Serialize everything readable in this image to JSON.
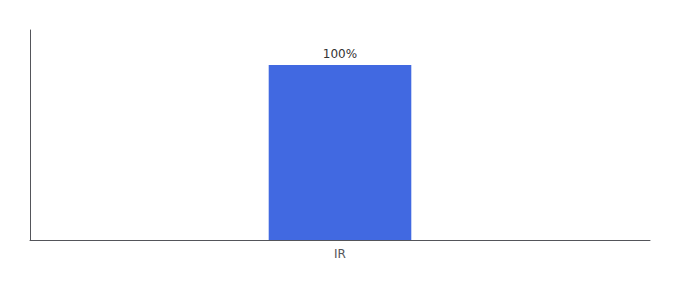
{
  "chart_data": {
    "type": "bar",
    "categories": [
      "IR"
    ],
    "values": [
      100
    ],
    "value_labels": [
      "100%"
    ],
    "data_labels": true,
    "color": "#4169e1",
    "ylim": [
      0,
      120
    ],
    "grid": false,
    "tick_labels": "x"
  }
}
